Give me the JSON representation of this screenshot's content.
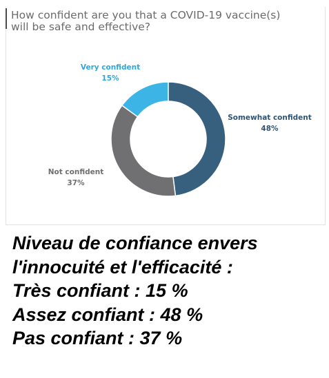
{
  "question": {
    "line1": "How confident are you that a COVID-19 vaccine(s)",
    "line2": "will be safe and effective?"
  },
  "chart_data": {
    "type": "pie",
    "donut": true,
    "title": "How confident are you that a COVID-19 vaccine(s) will be safe and effective?",
    "series": [
      {
        "name": "Very confident",
        "value": 15,
        "value_label": "15%",
        "color": "#3cb4e5"
      },
      {
        "name": "Somewhat confident",
        "value": 48,
        "value_label": "48%",
        "color": "#37607f"
      },
      {
        "name": "Not confident",
        "value": 37,
        "value_label": "37%",
        "color": "#707073"
      }
    ],
    "label_color": "#2e5474"
  },
  "caption": {
    "line1": "Niveau de confiance envers",
    "line2": "l'innocuité et l'efficacité :",
    "line3": "Très confiant : 15 %",
    "line4": "Assez confiant : 48 %",
    "line5": "Pas confiant : 37 %"
  }
}
